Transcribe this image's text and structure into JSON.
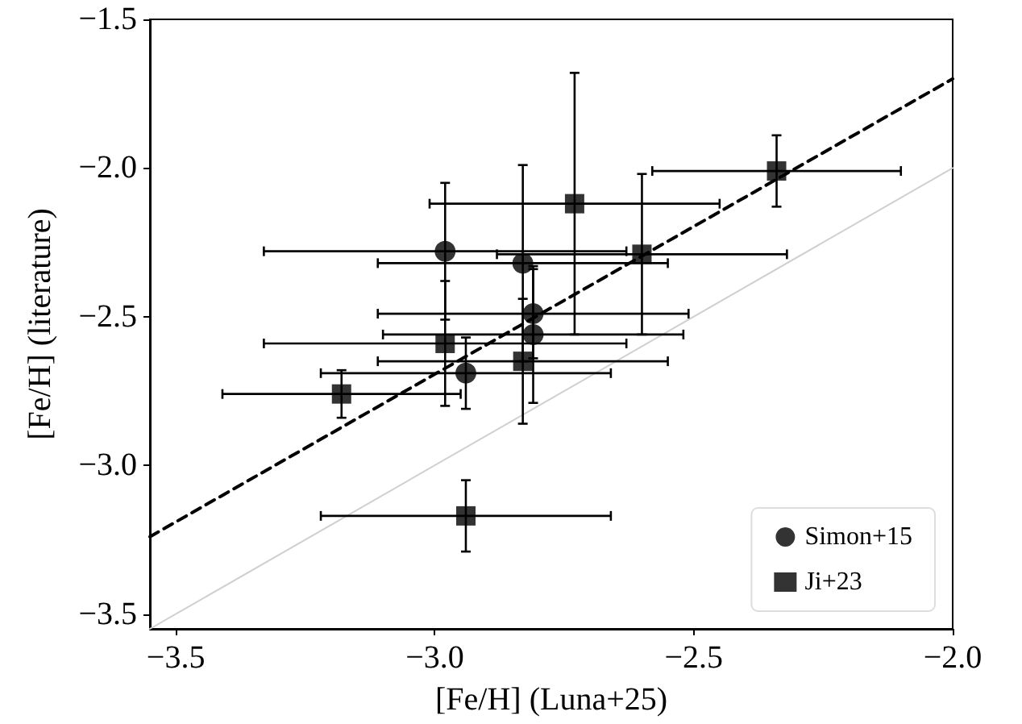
{
  "chart_data": {
    "type": "scatter",
    "xlabel": "[Fe/H] (Luna+25)",
    "ylabel": "[Fe/H] (literature)",
    "xlim": [
      -3.55,
      -2.0
    ],
    "ylim": [
      -3.55,
      -1.5
    ],
    "xticks": [
      {
        "value": -3.5,
        "label": "−3.5"
      },
      {
        "value": -3.0,
        "label": "−3.0"
      },
      {
        "value": -2.5,
        "label": "−2.5"
      },
      {
        "value": -2.0,
        "label": "−2.0"
      }
    ],
    "yticks": [
      {
        "value": -3.5,
        "label": "−3.5"
      },
      {
        "value": -3.0,
        "label": "−3.0"
      },
      {
        "value": -2.5,
        "label": "−2.5"
      },
      {
        "value": -2.0,
        "label": "−2.0"
      },
      {
        "value": -1.5,
        "label": "−1.5"
      }
    ],
    "grid": false,
    "legend": "bottom right",
    "series": [
      {
        "name": "Simon+15",
        "color": "#000000",
        "marker": "circle",
        "x": [
          -2.98,
          -2.83,
          -2.81,
          -2.81,
          -2.94
        ],
        "values": [
          -2.28,
          -2.32,
          -2.49,
          -2.56,
          -2.69
        ],
        "xerrors": [
          0.35,
          0.28,
          0.3,
          0.29,
          0.28
        ],
        "errors": [
          0.23,
          0.33,
          0.15,
          0.23,
          0.12
        ]
      },
      {
        "name": "Ji+23",
        "color": "#000000",
        "marker": "square",
        "x": [
          -2.73,
          -2.6,
          -2.98,
          -2.83,
          -3.18,
          -2.94,
          -2.34
        ],
        "values": [
          -2.12,
          -2.29,
          -2.59,
          -2.65,
          -2.76,
          -3.17,
          -2.01
        ],
        "xerrors": [
          0.28,
          0.28,
          0.35,
          0.28,
          0.23,
          0.28,
          0.24
        ],
        "errors": [
          0.44,
          0.27,
          0.21,
          0.21,
          0.08,
          0.12,
          0.12
        ]
      },
      {
        "type": "line",
        "color": "#000000",
        "line_style": "dashed",
        "marker": "none",
        "x": [
          -3.55,
          -2.0
        ],
        "values": [
          -3.24,
          -1.7
        ]
      },
      {
        "type": "line",
        "color": "#d0d0d0",
        "line_style": "solid",
        "marker": "none",
        "x": [
          -3.55,
          -2.0
        ],
        "values": [
          -3.55,
          -2.0
        ]
      }
    ]
  }
}
